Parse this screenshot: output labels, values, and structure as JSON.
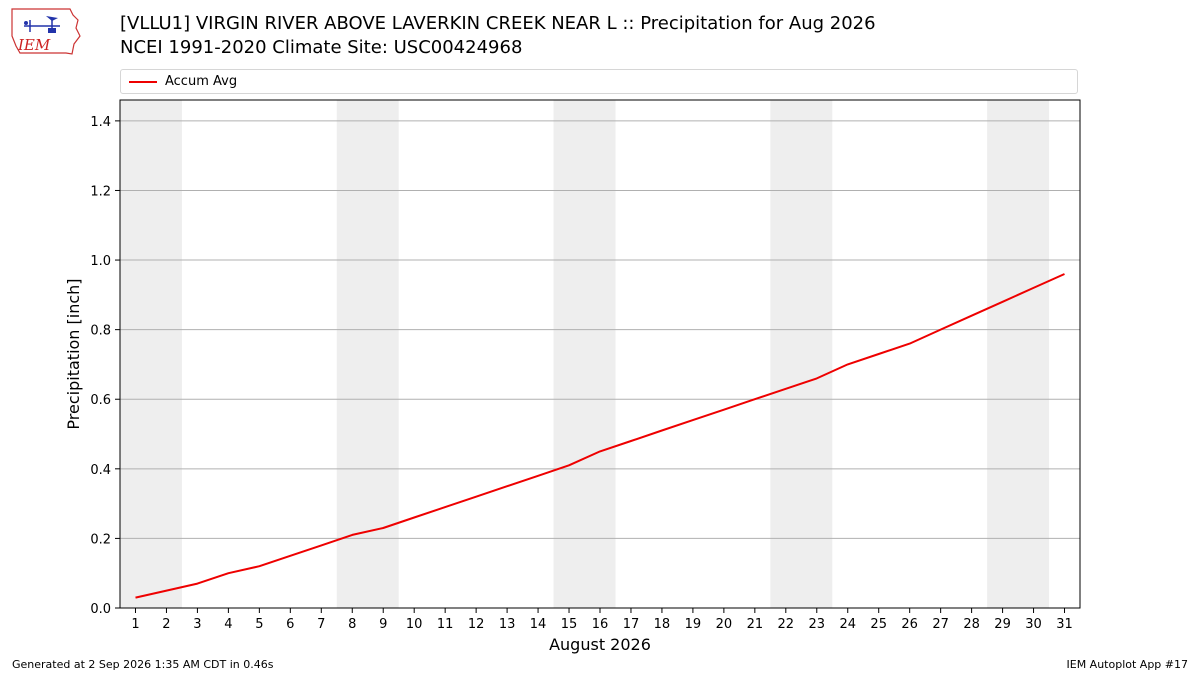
{
  "header": {
    "logo_text": "IEM",
    "title_line_1": "[VLLU1] VIRGIN RIVER ABOVE LAVERKIN CREEK NEAR L :: Precipitation for Aug 2026",
    "title_line_2": "NCEI 1991-2020 Climate Site: USC00424968"
  },
  "footer": {
    "left": "Generated at 2 Sep 2026 1:35 AM CDT in 0.46s",
    "right": "IEM Autoplot App #17"
  },
  "colors": {
    "series": "#ee0000",
    "weekend_band": "#eeeeee",
    "grid": "#b0b0b0"
  },
  "chart_data": {
    "type": "line",
    "title": "[VLLU1] VIRGIN RIVER ABOVE LAVERKIN CREEK NEAR L :: Precipitation for Aug 2026",
    "subtitle": "NCEI 1991-2020 Climate Site: USC00424968",
    "xlabel": "August 2026",
    "ylabel": "Precipitation [inch]",
    "xlim": [
      0.5,
      31.5
    ],
    "ylim": [
      0,
      1.46
    ],
    "yticks": [
      0.0,
      0.2,
      0.4,
      0.6,
      0.8,
      1.0,
      1.2,
      1.4
    ],
    "ytick_labels": [
      "0.0",
      "0.2",
      "0.4",
      "0.6",
      "0.8",
      "1.0",
      "1.2",
      "1.4"
    ],
    "xticks": [
      1,
      2,
      3,
      4,
      5,
      6,
      7,
      8,
      9,
      10,
      11,
      12,
      13,
      14,
      15,
      16,
      17,
      18,
      19,
      20,
      21,
      22,
      23,
      24,
      25,
      26,
      27,
      28,
      29,
      30,
      31
    ],
    "grid": "horizontal",
    "legend_position": "top",
    "weekend_bands": [
      [
        0.5,
        2.5
      ],
      [
        7.5,
        9.5
      ],
      [
        14.5,
        16.5
      ],
      [
        21.5,
        23.5
      ],
      [
        28.5,
        30.5
      ]
    ],
    "series": [
      {
        "name": "Accum Avg",
        "color": "#ee0000",
        "x": [
          1,
          2,
          3,
          4,
          5,
          6,
          7,
          8,
          9,
          10,
          11,
          12,
          13,
          14,
          15,
          16,
          17,
          18,
          19,
          20,
          21,
          22,
          23,
          24,
          25,
          26,
          27,
          28,
          29,
          30,
          31
        ],
        "y": [
          0.03,
          0.05,
          0.07,
          0.1,
          0.12,
          0.15,
          0.18,
          0.21,
          0.23,
          0.26,
          0.29,
          0.32,
          0.35,
          0.38,
          0.41,
          0.45,
          0.48,
          0.51,
          0.54,
          0.57,
          0.6,
          0.63,
          0.66,
          0.7,
          0.73,
          0.76,
          0.8,
          0.84,
          0.88,
          0.92,
          0.96
        ]
      }
    ]
  }
}
